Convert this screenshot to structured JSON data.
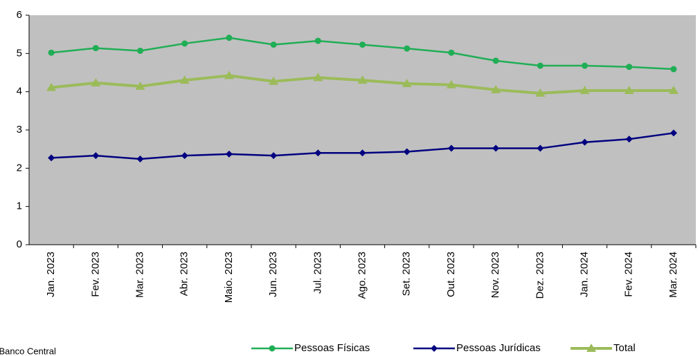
{
  "chart_data": {
    "type": "line",
    "categories": [
      "Jan. 2023",
      "Fev. 2023",
      "Mar. 2023",
      "Abr. 2023",
      "Maio. 2023",
      "Jun. 2023",
      "Jul. 2023",
      "Ago. 2023",
      "Set. 2023",
      "Out. 2023",
      "Nov. 2023",
      "Dez. 2023",
      "Jan. 2024",
      "Fev. 2024",
      "Mar. 2024"
    ],
    "series": [
      {
        "name": "Pessoas Físicas",
        "color": "#1fae55",
        "marker": "circle",
        "values": [
          5.02,
          5.14,
          5.07,
          5.26,
          5.41,
          5.23,
          5.33,
          5.23,
          5.13,
          5.02,
          4.81,
          4.68,
          4.68,
          4.65,
          4.59
        ]
      },
      {
        "name": "Pessoas Jurídicas",
        "color": "#000080",
        "marker": "diamond",
        "values": [
          2.27,
          2.33,
          2.24,
          2.33,
          2.37,
          2.33,
          2.4,
          2.4,
          2.43,
          2.52,
          2.52,
          2.52,
          2.68,
          2.76,
          2.92
        ]
      },
      {
        "name": "Total",
        "color": "#9bbb59",
        "marker": "triangle",
        "values": [
          4.11,
          4.23,
          4.14,
          4.3,
          4.42,
          4.27,
          4.37,
          4.3,
          4.21,
          4.18,
          4.05,
          3.96,
          4.03,
          4.03,
          4.03
        ]
      }
    ],
    "ylim": [
      0,
      6
    ],
    "yticks": [
      0,
      1,
      2,
      3,
      4,
      5,
      6
    ],
    "plot_background": "#c0c0c0",
    "legend": "bottom",
    "source": "Fonte: Banco Central"
  }
}
